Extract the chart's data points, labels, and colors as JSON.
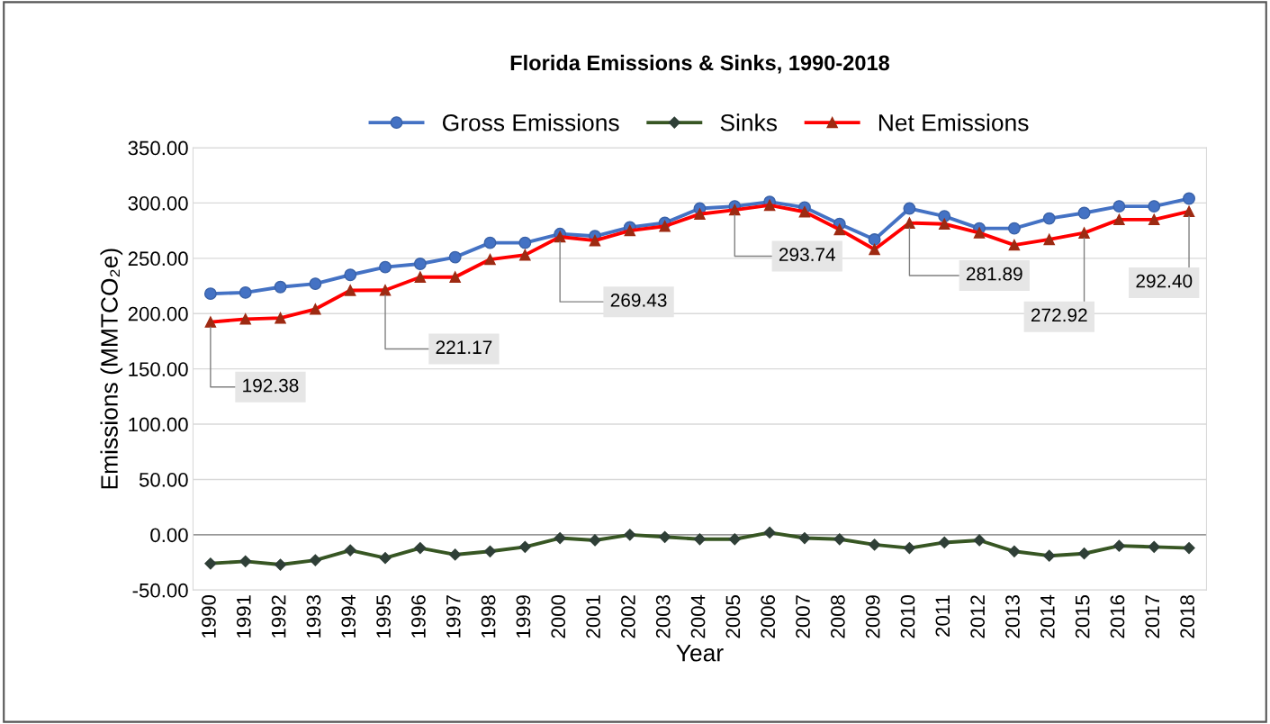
{
  "chart_data": {
    "type": "line",
    "title": "Florida Emissions & Sinks, 1990-2018",
    "xlabel": "Year",
    "ylabel": "Emissions (MMTCO₂e)",
    "categories": [
      "1990",
      "1991",
      "1992",
      "1993",
      "1994",
      "1995",
      "1996",
      "1997",
      "1998",
      "1999",
      "2000",
      "2001",
      "2002",
      "2003",
      "2004",
      "2005",
      "2006",
      "2007",
      "2008",
      "2009",
      "2010",
      "2011",
      "2012",
      "2013",
      "2014",
      "2015",
      "2016",
      "2017",
      "2018"
    ],
    "series": [
      {
        "name": "Gross Emissions",
        "color": "#4472c4",
        "marker": "circle",
        "values": [
          218,
          219,
          224,
          227,
          235,
          242,
          245,
          251,
          264,
          264,
          272,
          270,
          278,
          282,
          295,
          297,
          301,
          296,
          281,
          267,
          295,
          288,
          277,
          277,
          286,
          291,
          297,
          297,
          304
        ]
      },
      {
        "name": "Sinks",
        "color": "#375623",
        "marker": "diamond",
        "values": [
          -26,
          -24,
          -27,
          -23,
          -14,
          -21,
          -12,
          -18,
          -15,
          -11,
          -3,
          -5,
          0,
          -2,
          -4,
          -4,
          2,
          -3,
          -4,
          -9,
          -12,
          -7,
          -5,
          -15,
          -19,
          -17,
          -10,
          -11,
          -12
        ]
      },
      {
        "name": "Net Emissions",
        "color": "#ff0000",
        "marker": "triangle",
        "values": [
          192.38,
          195,
          196,
          204,
          221,
          221.17,
          233,
          233,
          249,
          253,
          269.43,
          266,
          275,
          279,
          290,
          293.74,
          298,
          292,
          276,
          258,
          281.89,
          281,
          273,
          262,
          267,
          272.92,
          285,
          285,
          292.4
        ],
        "value_labels": [
          "192.38",
          null,
          null,
          null,
          null,
          "221.17",
          null,
          null,
          null,
          null,
          "269.43",
          null,
          null,
          null,
          null,
          "293.74",
          null,
          null,
          null,
          null,
          "281.89",
          null,
          null,
          null,
          null,
          "272.92",
          null,
          null,
          "292.40"
        ]
      }
    ],
    "ylim": [
      -50,
      350
    ],
    "yticks": [
      {
        "value": -50,
        "label": "-50.00"
      },
      {
        "value": 0,
        "label": "0.00"
      },
      {
        "value": 50,
        "label": "50.00"
      },
      {
        "value": 100,
        "label": "100.00"
      },
      {
        "value": 150,
        "label": "150.00"
      },
      {
        "value": 200,
        "label": "200.00"
      },
      {
        "value": 250,
        "label": "250.00"
      },
      {
        "value": 300,
        "label": "300.00"
      },
      {
        "value": 350,
        "label": "350.00"
      }
    ],
    "grid": "y",
    "legend": "top"
  }
}
